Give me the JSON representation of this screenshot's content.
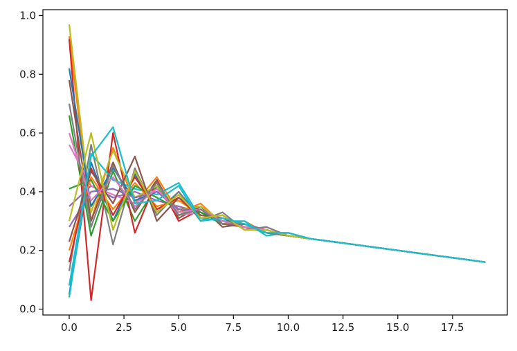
{
  "chart_data": {
    "type": "line",
    "title": "",
    "xlabel": "",
    "ylabel": "",
    "xlim": [
      -1.2,
      20.0
    ],
    "ylim": [
      -0.02,
      1.02
    ],
    "x_ticks": [
      0,
      2.5,
      5,
      7.5,
      10,
      12.5,
      15,
      17.5
    ],
    "x_tick_labels": [
      "0.0",
      "2.5",
      "5.0",
      "7.5",
      "10.0",
      "12.5",
      "15.0",
      "17.5"
    ],
    "y_ticks": [
      0,
      0.2,
      0.4,
      0.6,
      0.8,
      1.0
    ],
    "y_tick_labels": [
      "0.0",
      "0.2",
      "0.4",
      "0.6",
      "0.8",
      "1.0"
    ],
    "grid": false,
    "legend": "none",
    "x": [
      0,
      1,
      2,
      3,
      4,
      5,
      6,
      7,
      8,
      9,
      10,
      11,
      12,
      13,
      14,
      15,
      16,
      17,
      18,
      19
    ],
    "palette": [
      "#1f77b4",
      "#ff7f0e",
      "#2ca02c",
      "#d62728",
      "#9467bd",
      "#8c564b",
      "#e377c2",
      "#7f7f7f",
      "#bcbd22",
      "#17becf"
    ],
    "series": [
      {
        "color": "#1f77b4",
        "values": [
          0.05,
          0.5,
          0.3,
          0.46,
          0.33,
          0.4,
          0.31,
          0.32,
          0.27,
          0.27,
          0.25,
          0.24,
          0.23,
          0.22,
          0.21,
          0.2,
          0.19,
          0.18,
          0.17,
          0.16
        ]
      },
      {
        "color": "#ff7f0e",
        "values": [
          0.93,
          0.3,
          0.55,
          0.36,
          0.45,
          0.33,
          0.36,
          0.29,
          0.3,
          0.26,
          0.26,
          0.24,
          0.23,
          0.22,
          0.21,
          0.2,
          0.19,
          0.18,
          0.17,
          0.16
        ]
      },
      {
        "color": "#2ca02c",
        "values": [
          0.66,
          0.25,
          0.47,
          0.3,
          0.42,
          0.32,
          0.35,
          0.29,
          0.29,
          0.26,
          0.25,
          0.24,
          0.23,
          0.22,
          0.21,
          0.2,
          0.19,
          0.18,
          0.17,
          0.16
        ]
      },
      {
        "color": "#d62728",
        "values": [
          0.92,
          0.03,
          0.6,
          0.26,
          0.44,
          0.3,
          0.34,
          0.29,
          0.28,
          0.26,
          0.25,
          0.24,
          0.23,
          0.22,
          0.21,
          0.2,
          0.19,
          0.18,
          0.17,
          0.16
        ]
      },
      {
        "color": "#9467bd",
        "values": [
          0.35,
          0.42,
          0.38,
          0.4,
          0.37,
          0.35,
          0.33,
          0.3,
          0.29,
          0.27,
          0.25,
          0.24,
          0.23,
          0.22,
          0.21,
          0.2,
          0.19,
          0.18,
          0.17,
          0.16
        ]
      },
      {
        "color": "#8c564b",
        "values": [
          0.78,
          0.3,
          0.5,
          0.33,
          0.44,
          0.31,
          0.35,
          0.28,
          0.29,
          0.26,
          0.25,
          0.24,
          0.23,
          0.22,
          0.21,
          0.2,
          0.19,
          0.18,
          0.17,
          0.16
        ]
      },
      {
        "color": "#e377c2",
        "values": [
          0.56,
          0.42,
          0.39,
          0.36,
          0.41,
          0.32,
          0.33,
          0.3,
          0.28,
          0.27,
          0.25,
          0.24,
          0.23,
          0.22,
          0.21,
          0.2,
          0.19,
          0.18,
          0.17,
          0.16
        ]
      },
      {
        "color": "#7f7f7f",
        "values": [
          0.13,
          0.56,
          0.22,
          0.48,
          0.32,
          0.4,
          0.3,
          0.33,
          0.27,
          0.28,
          0.25,
          0.24,
          0.23,
          0.22,
          0.21,
          0.2,
          0.19,
          0.18,
          0.17,
          0.16
        ]
      },
      {
        "color": "#bcbd22",
        "values": [
          0.97,
          0.33,
          0.54,
          0.38,
          0.42,
          0.34,
          0.35,
          0.3,
          0.29,
          0.26,
          0.26,
          0.24,
          0.23,
          0.22,
          0.21,
          0.2,
          0.19,
          0.18,
          0.17,
          0.16
        ]
      },
      {
        "color": "#17becf",
        "values": [
          0.04,
          0.53,
          0.44,
          0.41,
          0.39,
          0.43,
          0.31,
          0.3,
          0.3,
          0.25,
          0.26,
          0.24,
          0.23,
          0.22,
          0.21,
          0.2,
          0.19,
          0.18,
          0.17,
          0.16
        ]
      },
      {
        "color": "#1f77b4",
        "values": [
          0.82,
          0.35,
          0.48,
          0.37,
          0.4,
          0.34,
          0.33,
          0.3,
          0.28,
          0.27,
          0.25,
          0.24,
          0.23,
          0.22,
          0.21,
          0.2,
          0.19,
          0.18,
          0.17,
          0.16
        ]
      },
      {
        "color": "#ff7f0e",
        "values": [
          0.2,
          0.45,
          0.34,
          0.43,
          0.35,
          0.37,
          0.32,
          0.31,
          0.28,
          0.27,
          0.25,
          0.24,
          0.23,
          0.22,
          0.21,
          0.2,
          0.19,
          0.18,
          0.17,
          0.16
        ]
      },
      {
        "color": "#2ca02c",
        "values": [
          0.41,
          0.44,
          0.3,
          0.42,
          0.38,
          0.34,
          0.33,
          0.29,
          0.29,
          0.26,
          0.25,
          0.24,
          0.23,
          0.22,
          0.21,
          0.2,
          0.19,
          0.18,
          0.17,
          0.16
        ]
      },
      {
        "color": "#d62728",
        "values": [
          0.16,
          0.48,
          0.32,
          0.45,
          0.34,
          0.38,
          0.31,
          0.32,
          0.27,
          0.27,
          0.25,
          0.24,
          0.23,
          0.22,
          0.21,
          0.2,
          0.19,
          0.18,
          0.17,
          0.16
        ]
      },
      {
        "color": "#9467bd",
        "values": [
          0.28,
          0.4,
          0.41,
          0.38,
          0.4,
          0.34,
          0.34,
          0.3,
          0.28,
          0.27,
          0.25,
          0.24,
          0.23,
          0.22,
          0.21,
          0.2,
          0.19,
          0.18,
          0.17,
          0.16
        ]
      },
      {
        "color": "#8c564b",
        "values": [
          0.23,
          0.47,
          0.36,
          0.52,
          0.3,
          0.38,
          0.32,
          0.31,
          0.28,
          0.27,
          0.25,
          0.24,
          0.23,
          0.22,
          0.21,
          0.2,
          0.19,
          0.18,
          0.17,
          0.16
        ]
      },
      {
        "color": "#e377c2",
        "values": [
          0.6,
          0.37,
          0.45,
          0.35,
          0.41,
          0.33,
          0.34,
          0.3,
          0.28,
          0.27,
          0.25,
          0.24,
          0.23,
          0.22,
          0.21,
          0.2,
          0.19,
          0.18,
          0.17,
          0.16
        ]
      },
      {
        "color": "#7f7f7f",
        "values": [
          0.7,
          0.28,
          0.49,
          0.34,
          0.43,
          0.32,
          0.34,
          0.29,
          0.29,
          0.26,
          0.25,
          0.24,
          0.23,
          0.22,
          0.21,
          0.2,
          0.19,
          0.18,
          0.17,
          0.16
        ]
      },
      {
        "color": "#bcbd22",
        "values": [
          0.3,
          0.6,
          0.27,
          0.47,
          0.33,
          0.39,
          0.31,
          0.32,
          0.27,
          0.27,
          0.25,
          0.24,
          0.23,
          0.22,
          0.21,
          0.2,
          0.19,
          0.18,
          0.17,
          0.16
        ]
      },
      {
        "color": "#17becf",
        "values": [
          0.08,
          0.52,
          0.62,
          0.36,
          0.37,
          0.42,
          0.3,
          0.31,
          0.29,
          0.26,
          0.26,
          0.24,
          0.23,
          0.22,
          0.21,
          0.2,
          0.19,
          0.18,
          0.17,
          0.16
        ]
      }
    ]
  }
}
